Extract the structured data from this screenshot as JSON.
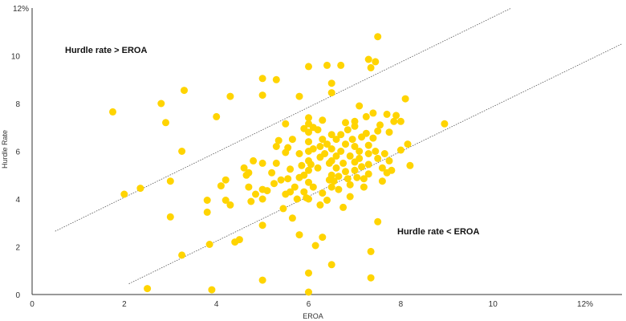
{
  "chart_data": {
    "type": "scatter",
    "xlabel": "EROA",
    "ylabel": "Hurdle Rate",
    "xlim": [
      0,
      12.8
    ],
    "ylim": [
      0,
      12
    ],
    "x_ticks": [
      "0",
      "2",
      "4",
      "6",
      "8",
      "10",
      "12%"
    ],
    "y_ticks": [
      "0",
      "2",
      "4",
      "6",
      "8",
      "10",
      "12%"
    ],
    "grid": false,
    "point_color": "#FFD400",
    "line_color": "#555555",
    "annotations": {
      "above": "Hurdle rate > EROA",
      "below": "Hurdle rate < EROA"
    },
    "reference_lines": [
      {
        "x1": 0.5,
        "y1": 2.65,
        "x2": 10.4,
        "y2": 12.0
      },
      {
        "x1": 2.1,
        "y1": 0.45,
        "x2": 12.8,
        "y2": 10.5
      }
    ],
    "points": [
      [
        1.75,
        7.65
      ],
      [
        2.0,
        4.2
      ],
      [
        2.35,
        4.45
      ],
      [
        2.5,
        0.25
      ],
      [
        2.8,
        8.0
      ],
      [
        2.9,
        7.2
      ],
      [
        3.0,
        4.75
      ],
      [
        3.0,
        3.25
      ],
      [
        3.25,
        6.0
      ],
      [
        3.25,
        1.65
      ],
      [
        3.3,
        8.55
      ],
      [
        3.9,
        0.2
      ],
      [
        3.8,
        3.95
      ],
      [
        3.8,
        3.45
      ],
      [
        3.85,
        2.1
      ],
      [
        4.0,
        7.45
      ],
      [
        4.1,
        4.55
      ],
      [
        4.2,
        4.8
      ],
      [
        4.2,
        3.95
      ],
      [
        4.3,
        8.3
      ],
      [
        4.3,
        3.75
      ],
      [
        4.4,
        2.2
      ],
      [
        4.5,
        2.3
      ],
      [
        4.6,
        5.3
      ],
      [
        4.65,
        5.0
      ],
      [
        4.7,
        5.1
      ],
      [
        4.7,
        4.5
      ],
      [
        4.75,
        3.9
      ],
      [
        4.8,
        5.6
      ],
      [
        4.85,
        4.2
      ],
      [
        5.0,
        9.05
      ],
      [
        5.0,
        8.35
      ],
      [
        5.0,
        5.5
      ],
      [
        5.0,
        4.4
      ],
      [
        5.0,
        4.0
      ],
      [
        5.0,
        2.9
      ],
      [
        5.0,
        0.6
      ],
      [
        5.1,
        4.35
      ],
      [
        5.2,
        5.1
      ],
      [
        5.3,
        9.0
      ],
      [
        5.3,
        6.2
      ],
      [
        5.3,
        5.5
      ],
      [
        5.35,
        6.45
      ],
      [
        5.4,
        4.8
      ],
      [
        5.45,
        3.6
      ],
      [
        5.5,
        7.15
      ],
      [
        5.5,
        5.95
      ],
      [
        5.5,
        4.2
      ],
      [
        5.55,
        4.85
      ],
      [
        5.6,
        5.25
      ],
      [
        5.6,
        4.3
      ],
      [
        5.65,
        6.5
      ],
      [
        5.65,
        3.2
      ],
      [
        5.7,
        4.5
      ],
      [
        5.75,
        4.0
      ],
      [
        5.8,
        8.3
      ],
      [
        5.8,
        5.9
      ],
      [
        5.8,
        4.9
      ],
      [
        5.8,
        2.5
      ],
      [
        5.85,
        5.4
      ],
      [
        5.9,
        5.0
      ],
      [
        5.9,
        4.3
      ],
      [
        5.95,
        4.05
      ],
      [
        6.0,
        9.55
      ],
      [
        6.0,
        7.4
      ],
      [
        6.0,
        7.15
      ],
      [
        6.0,
        6.8
      ],
      [
        6.0,
        6.4
      ],
      [
        6.0,
        6.0
      ],
      [
        6.0,
        5.6
      ],
      [
        6.0,
        5.2
      ],
      [
        6.0,
        4.7
      ],
      [
        6.0,
        4.0
      ],
      [
        6.0,
        0.9
      ],
      [
        6.0,
        0.1
      ],
      [
        6.05,
        5.45
      ],
      [
        6.1,
        7.0
      ],
      [
        6.1,
        6.1
      ],
      [
        6.1,
        4.5
      ],
      [
        6.15,
        2.05
      ],
      [
        6.2,
        6.9
      ],
      [
        6.2,
        5.3
      ],
      [
        6.25,
        6.2
      ],
      [
        6.25,
        3.75
      ],
      [
        6.3,
        7.3
      ],
      [
        6.3,
        6.5
      ],
      [
        6.3,
        4.25
      ],
      [
        6.3,
        2.4
      ],
      [
        6.35,
        5.9
      ],
      [
        6.4,
        9.6
      ],
      [
        6.4,
        6.3
      ],
      [
        6.4,
        3.95
      ],
      [
        6.45,
        5.5
      ],
      [
        6.5,
        8.85
      ],
      [
        6.5,
        8.45
      ],
      [
        6.5,
        6.7
      ],
      [
        6.5,
        6.1
      ],
      [
        6.5,
        5.6
      ],
      [
        6.5,
        5.0
      ],
      [
        6.5,
        4.5
      ],
      [
        6.5,
        1.25
      ],
      [
        6.55,
        4.75
      ],
      [
        6.6,
        6.5
      ],
      [
        6.6,
        5.8
      ],
      [
        6.6,
        5.3
      ],
      [
        6.65,
        4.95
      ],
      [
        6.65,
        4.4
      ],
      [
        6.7,
        9.6
      ],
      [
        6.7,
        6.7
      ],
      [
        6.7,
        6.0
      ],
      [
        6.75,
        5.5
      ],
      [
        6.75,
        3.65
      ],
      [
        6.8,
        7.2
      ],
      [
        6.8,
        6.3
      ],
      [
        6.8,
        5.15
      ],
      [
        6.85,
        4.85
      ],
      [
        6.9,
        5.8
      ],
      [
        6.9,
        4.6
      ],
      [
        6.9,
        4.1
      ],
      [
        6.95,
        6.5
      ],
      [
        7.0,
        7.25
      ],
      [
        7.0,
        7.05
      ],
      [
        7.0,
        6.2
      ],
      [
        7.0,
        5.55
      ],
      [
        7.0,
        5.2
      ],
      [
        7.05,
        4.9
      ],
      [
        7.1,
        7.9
      ],
      [
        7.1,
        6.0
      ],
      [
        7.1,
        5.7
      ],
      [
        7.15,
        6.6
      ],
      [
        7.15,
        5.35
      ],
      [
        7.2,
        4.85
      ],
      [
        7.2,
        4.5
      ],
      [
        7.25,
        7.45
      ],
      [
        7.25,
        6.75
      ],
      [
        7.3,
        6.25
      ],
      [
        7.3,
        5.9
      ],
      [
        7.3,
        5.45
      ],
      [
        7.3,
        5.05
      ],
      [
        7.3,
        9.85
      ],
      [
        7.35,
        9.5
      ],
      [
        7.35,
        1.8
      ],
      [
        7.35,
        0.7
      ],
      [
        7.4,
        7.6
      ],
      [
        7.4,
        6.55
      ],
      [
        7.45,
        9.75
      ],
      [
        7.45,
        6.0
      ],
      [
        7.5,
        10.8
      ],
      [
        7.5,
        6.85
      ],
      [
        7.5,
        5.7
      ],
      [
        7.5,
        3.05
      ],
      [
        7.55,
        7.1
      ],
      [
        7.6,
        5.3
      ],
      [
        7.65,
        5.9
      ],
      [
        7.7,
        7.55
      ],
      [
        7.7,
        5.1
      ],
      [
        7.75,
        6.8
      ],
      [
        7.75,
        5.6
      ],
      [
        7.8,
        5.2
      ],
      [
        7.85,
        7.25
      ],
      [
        7.9,
        7.5
      ],
      [
        8.0,
        7.25
      ],
      [
        8.0,
        6.05
      ],
      [
        8.1,
        8.2
      ],
      [
        8.15,
        6.3
      ],
      [
        8.2,
        5.4
      ],
      [
        8.95,
        7.15
      ],
      [
        5.55,
        6.15
      ],
      [
        6.25,
        5.75
      ],
      [
        6.85,
        6.9
      ],
      [
        5.25,
        4.65
      ],
      [
        6.45,
        4.8
      ],
      [
        7.6,
        4.75
      ],
      [
        5.9,
        6.95
      ]
    ]
  }
}
